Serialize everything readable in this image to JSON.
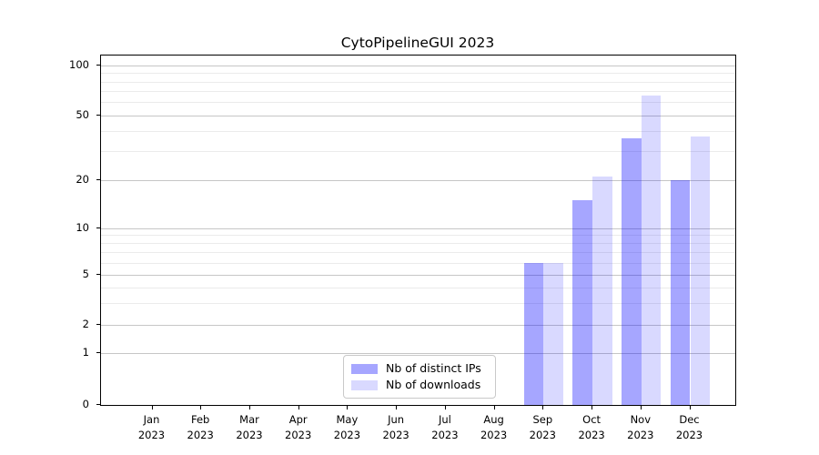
{
  "chart_data": {
    "type": "bar",
    "title": "CytoPipelineGUI 2023",
    "categories": [
      "Jan 2023",
      "Feb 2023",
      "Mar 2023",
      "Apr 2023",
      "May 2023",
      "Jun 2023",
      "Jul 2023",
      "Aug 2023",
      "Sep 2023",
      "Oct 2023",
      "Nov 2023",
      "Dec 2023"
    ],
    "series": [
      {
        "name": "Nb of distinct IPs",
        "color": "rgba(0,0,255,0.35)",
        "values": [
          0,
          0,
          0,
          0,
          0,
          0,
          0,
          0,
          6,
          15,
          36,
          20
        ]
      },
      {
        "name": "Nb of downloads",
        "color": "rgba(0,0,255,0.15)",
        "values": [
          0,
          0,
          0,
          0,
          0,
          0,
          0,
          0,
          6,
          21,
          66,
          37
        ]
      }
    ],
    "yscale": "symlog",
    "ylim": [
      0,
      116
    ],
    "y_major_ticks": [
      0,
      1,
      2,
      5,
      10,
      20,
      50,
      100
    ],
    "y_minor_ticks": [
      3,
      4,
      6,
      7,
      8,
      9,
      30,
      40,
      60,
      70,
      80,
      90
    ],
    "grid": "on",
    "legend_position": "lower center",
    "colors": {
      "grid_major": "#c6c6c6",
      "grid_minor": "#ebebeb",
      "axis": "#000000",
      "legend_border": "#c9c9c9"
    }
  }
}
